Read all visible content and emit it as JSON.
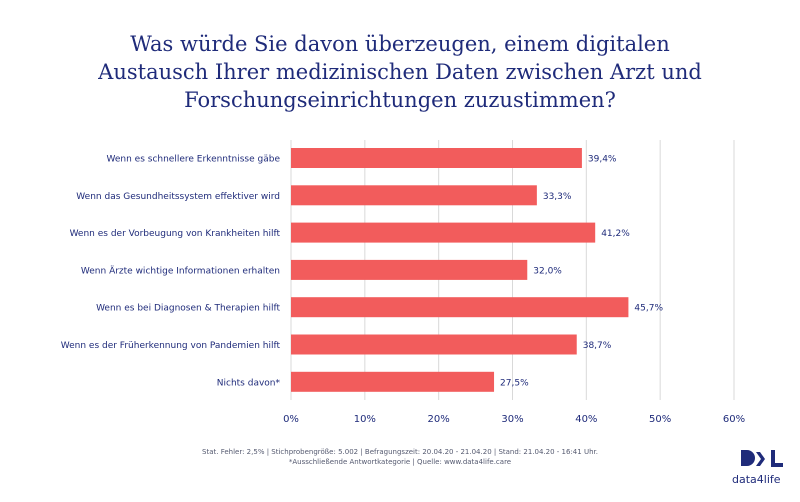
{
  "title_lines": [
    "Was würde Sie davon überzeugen, einem digitalen",
    "Austausch Ihrer medizinischen Daten zwischen Arzt und",
    "Forschungseinrichtungen zuzustimmen?"
  ],
  "chart_data": {
    "type": "bar",
    "orientation": "horizontal",
    "title": "Was würde Sie davon überzeugen, einem digitalen Austausch Ihrer medizinischen Daten zwischen Arzt und Forschungseinrichtungen zuzustimmen?",
    "categories": [
      "Wenn es schnellere Erkenntnisse gäbe",
      "Wenn das Gesundheitssystem effektiver wird",
      "Wenn es der Vorbeugung von Krankheiten hilft",
      "Wenn Ärzte wichtige Informationen erhalten",
      "Wenn es bei Diagnosen & Therapien hilft",
      "Wenn es der Früherkennung von Pandemien hilft",
      "Nichts davon*"
    ],
    "values": [
      39.4,
      33.3,
      41.2,
      32.0,
      45.7,
      38.7,
      27.5
    ],
    "value_labels": [
      "39,4%",
      "33,3%",
      "41,2%",
      "32,0%",
      "45,7%",
      "38,7%",
      "27,5%"
    ],
    "xlim": [
      0,
      60
    ],
    "ticks": [
      0,
      10,
      20,
      30,
      40,
      50,
      60
    ],
    "tick_labels": [
      "0%",
      "10%",
      "20%",
      "30%",
      "40%",
      "50%",
      "60%"
    ],
    "grid": true,
    "bar_color": "#f25c5c"
  },
  "footer": {
    "line1": "Stat. Fehler: 2,5% | Stichprobengröße: 5.002 | Befragungszeit: 20.04.20 - 21.04.20 | Stand: 21.04.20 - 16:41 Uhr.",
    "line2": "*Ausschließende Antwortkategorie  |  Quelle: www.data4life.care"
  },
  "logo": {
    "text": "data4life"
  },
  "colors": {
    "title": "#1f2b7a",
    "bar": "#f25c5c",
    "grid": "#d9d9d9",
    "axis_text": "#1f2b7a"
  }
}
